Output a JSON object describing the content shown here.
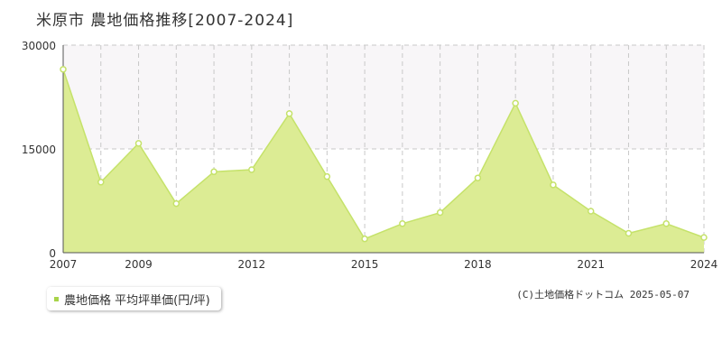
{
  "title": "米原市 農地価格推移[2007-2024]",
  "legend": {
    "label": "農地価格 平均坪単価(円/坪)"
  },
  "footer": "(C)土地価格ドットコム 2025-05-07",
  "colors": {
    "fill": "#dcec94",
    "line": "#c5e26a",
    "marker": "#c5e26a",
    "band": "#f8f6f8",
    "grid": "#c8c8c8"
  },
  "chart_data": {
    "type": "area",
    "title": "米原市 農地価格推移[2007-2024]",
    "xlabel": "",
    "ylabel": "",
    "x": [
      2007,
      2008,
      2009,
      2010,
      2011,
      2012,
      2013,
      2014,
      2015,
      2016,
      2017,
      2018,
      2019,
      2020,
      2021,
      2022,
      2023,
      2024
    ],
    "series": [
      {
        "name": "農地価格 平均坪単価(円/坪)",
        "values": [
          26500,
          10200,
          15800,
          7100,
          11700,
          12000,
          20100,
          11000,
          2000,
          4200,
          5800,
          10800,
          21600,
          9800,
          6000,
          2800,
          4200,
          2200
        ]
      }
    ],
    "xticks": [
      "2007",
      "2009",
      "2012",
      "2015",
      "2018",
      "2021",
      "2024"
    ],
    "yticks": [
      "0",
      "15000",
      "30000"
    ],
    "xlim": [
      2007,
      2024
    ],
    "ylim": [
      0,
      30000
    ],
    "grid": true,
    "legend_position": "bottom-left"
  }
}
